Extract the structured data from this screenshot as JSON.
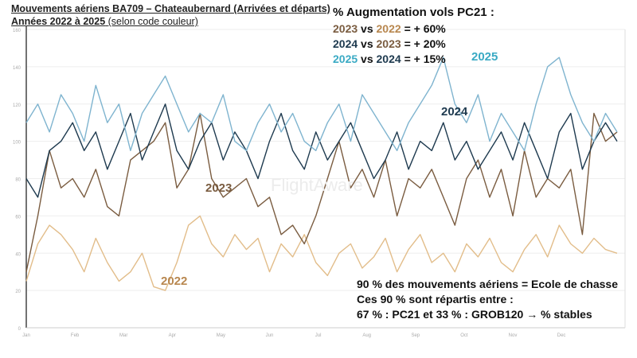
{
  "title": "Mouvements aériens BA709 – Chateaubernard (Arrivées et départs)",
  "subtitle_bold": "Années 2022 à 2025",
  "subtitle_note": "(selon code couleur)",
  "increase": {
    "heading": "% Augmentation vols PC21 :",
    "rows": [
      {
        "a": "2023",
        "vs": "vs",
        "b": "2022",
        "value": "= + 60%"
      },
      {
        "a": "2024",
        "vs": "vs",
        "b": "2023",
        "value": "= + 20%"
      },
      {
        "a": "2025",
        "vs": "vs",
        "b": "2024",
        "value": "= + 15%"
      }
    ]
  },
  "bottom_note": [
    "90 % des mouvements aériens = Ecole de chasse",
    "Ces 90 % sont répartis entre :",
    "67 % : PC21 et 33 % : GROB120  → % stables"
  ],
  "watermark": "FlightAware",
  "chart_data": {
    "type": "line",
    "ylim": [
      0,
      160
    ],
    "yticks": [
      "0",
      "20",
      "40",
      "60",
      "80",
      "100",
      "120",
      "140",
      "160"
    ],
    "months": [
      "Jan",
      "Feb",
      "Mar",
      "Apr",
      "May",
      "Jun",
      "Jul",
      "Aug",
      "Sep",
      "Oct",
      "Nov",
      "Dec"
    ],
    "grid": true,
    "series": [
      {
        "name": "2022",
        "color": "#e2bd8a",
        "values": [
          25,
          45,
          55,
          50,
          42,
          30,
          48,
          35,
          25,
          30,
          40,
          22,
          20,
          35,
          55,
          60,
          45,
          38,
          50,
          42,
          48,
          30,
          45,
          38,
          50,
          35,
          28,
          40,
          45,
          32,
          38,
          48,
          30,
          42,
          50,
          35,
          40,
          30,
          45,
          38,
          48,
          35,
          30,
          42,
          50,
          38,
          55,
          45,
          40,
          48,
          42,
          40
        ]
      },
      {
        "name": "2023",
        "color": "#7a5c40",
        "values": [
          30,
          60,
          95,
          75,
          80,
          70,
          85,
          65,
          60,
          90,
          95,
          100,
          110,
          75,
          85,
          115,
          80,
          70,
          75,
          80,
          65,
          70,
          50,
          55,
          45,
          60,
          80,
          100,
          75,
          85,
          70,
          90,
          60,
          80,
          75,
          85,
          70,
          55,
          80,
          90,
          70,
          85,
          60,
          95,
          70,
          80,
          75,
          85,
          50,
          115,
          100,
          105
        ]
      },
      {
        "name": "2024",
        "color": "#1e3a4f",
        "values": [
          80,
          70,
          95,
          100,
          110,
          95,
          105,
          85,
          100,
          115,
          90,
          105,
          120,
          95,
          85,
          100,
          110,
          90,
          105,
          95,
          80,
          100,
          115,
          95,
          85,
          105,
          90,
          100,
          110,
          95,
          80,
          90,
          105,
          85,
          100,
          95,
          110,
          90,
          100,
          85,
          95,
          105,
          90,
          110,
          95,
          80,
          105,
          115,
          85,
          100,
          110,
          100
        ]
      },
      {
        "name": "2025",
        "color": "#7fb4cf",
        "values": [
          110,
          120,
          105,
          125,
          115,
          100,
          130,
          110,
          120,
          95,
          115,
          125,
          135,
          120,
          105,
          115,
          110,
          125,
          100,
          95,
          110,
          120,
          105,
          115,
          100,
          95,
          110,
          120,
          100,
          125,
          115,
          105,
          95,
          110,
          120,
          130,
          145,
          120,
          110,
          125,
          100,
          115,
          105,
          95,
          120,
          140,
          145,
          125,
          110,
          100,
          115,
          105
        ]
      }
    ]
  },
  "series_labels": {
    "2022": "2022",
    "2023": "2023",
    "2024": "2024",
    "2025": "2025"
  }
}
